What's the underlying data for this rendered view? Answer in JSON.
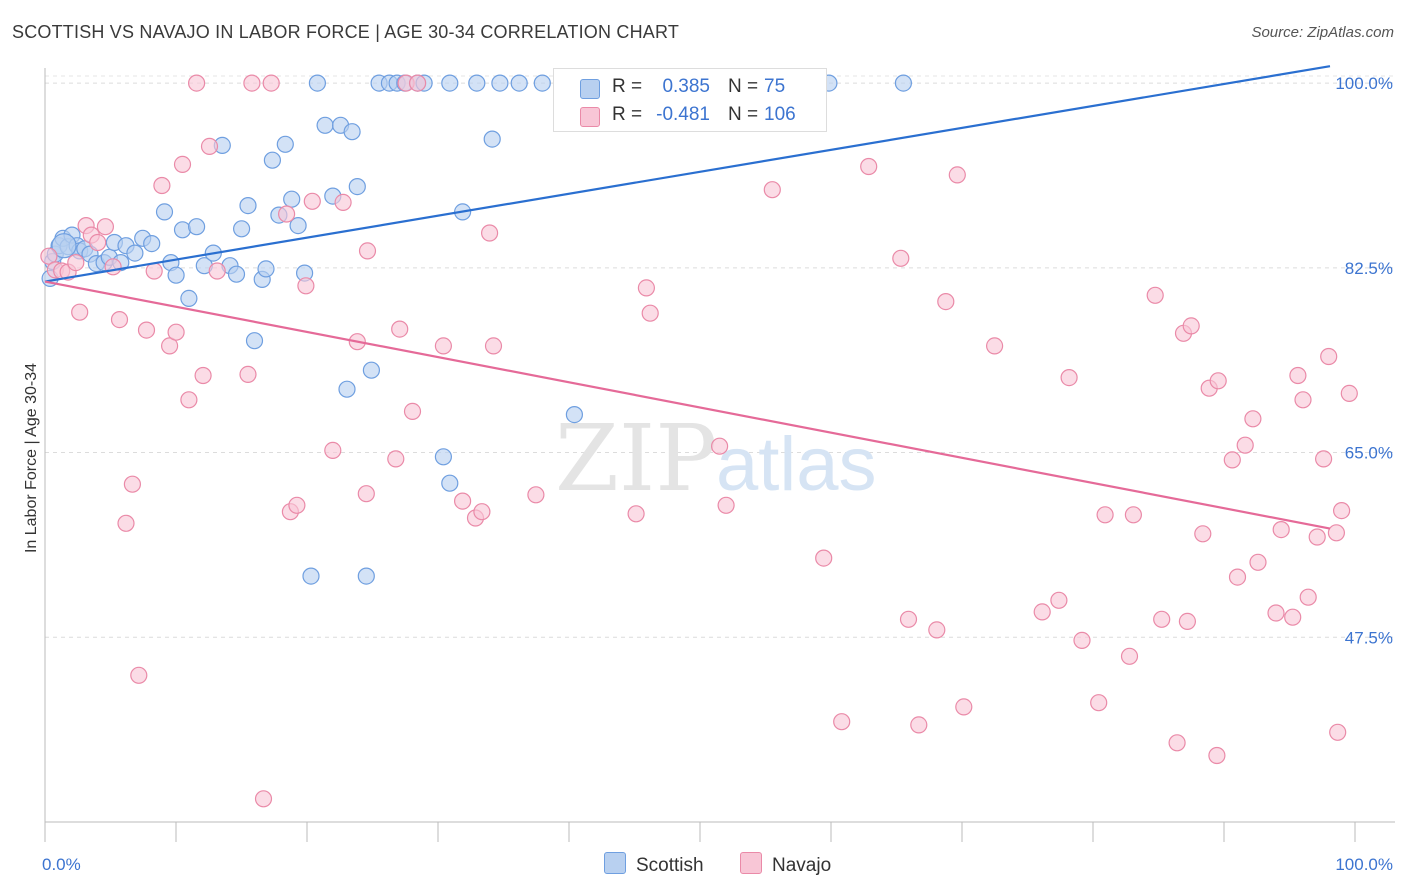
{
  "title": "SCOTTISH VS NAVAJO IN LABOR FORCE | AGE 30-34 CORRELATION CHART",
  "source": "Source: ZipAtlas.com",
  "watermark": {
    "zip": "ZIP",
    "atlas": "atlas"
  },
  "colors": {
    "scottish_fill": "#b8d0f0",
    "scottish_stroke": "#6f9fe0",
    "scottish_line": "#2a6fd0",
    "navajo_fill": "#f8c6d6",
    "navajo_stroke": "#ea8aa8",
    "navajo_line": "#e56a98",
    "tick_text": "#3c74d0"
  },
  "legend": {
    "rows": [
      {
        "r_label": "R =",
        "r_value": "0.385",
        "n_label": "N =",
        "n_value": "75"
      },
      {
        "r_label": "R =",
        "r_value": "-0.481",
        "n_label": "N =",
        "n_value": "106"
      }
    ]
  },
  "bottom_legend": [
    "Scottish",
    "Navajo"
  ],
  "chart_data": {
    "type": "scatter",
    "ylabel": "In Labor Force | Age 30-34",
    "xlim": [
      0,
      100
    ],
    "ylim": [
      30,
      102
    ],
    "y_ticks": [
      {
        "value": 100,
        "label": "100.0%"
      },
      {
        "value": 82.5,
        "label": "82.5%"
      },
      {
        "value": 65,
        "label": "65.0%"
      },
      {
        "value": 47.5,
        "label": "47.5%"
      }
    ],
    "x_tick_labels": [
      {
        "value": 0,
        "label": "0.0%"
      },
      {
        "value": 100,
        "label": "100.0%"
      }
    ],
    "x_minor_ticks": [
      0,
      10,
      20,
      30,
      40,
      50,
      60,
      70,
      80,
      90,
      100
    ],
    "grid": true,
    "series": [
      {
        "name": "Scottish",
        "r": 0.385,
        "n": 75,
        "trend": {
          "x0": 0,
          "y0": 81.2,
          "x1": 100,
          "y1": 101.6
        },
        "points": [
          [
            0.4,
            81.5
          ],
          [
            0.6,
            83.1
          ],
          [
            0.8,
            83.8
          ],
          [
            1.1,
            84.6
          ],
          [
            1.4,
            85.3
          ],
          [
            1.8,
            84.5
          ],
          [
            2.1,
            85.6
          ],
          [
            2.5,
            84.6
          ],
          [
            2.7,
            84.1
          ],
          [
            3.1,
            84.3
          ],
          [
            3.5,
            83.8
          ],
          [
            4.0,
            82.9
          ],
          [
            4.6,
            83.0
          ],
          [
            5.0,
            83.5
          ],
          [
            5.4,
            84.9
          ],
          [
            5.9,
            83.0
          ],
          [
            6.3,
            84.6
          ],
          [
            7.0,
            83.9
          ],
          [
            7.6,
            85.3
          ],
          [
            8.3,
            84.8
          ],
          [
            9.3,
            87.8
          ],
          [
            9.8,
            83.0
          ],
          [
            10.2,
            81.8
          ],
          [
            10.7,
            86.1
          ],
          [
            11.2,
            79.6
          ],
          [
            11.8,
            86.4
          ],
          [
            12.4,
            82.7
          ],
          [
            13.1,
            83.9
          ],
          [
            13.8,
            94.1
          ],
          [
            14.4,
            82.7
          ],
          [
            14.9,
            81.9
          ],
          [
            15.3,
            86.2
          ],
          [
            15.8,
            88.4
          ],
          [
            16.3,
            75.6
          ],
          [
            16.9,
            81.4
          ],
          [
            17.2,
            82.4
          ],
          [
            17.7,
            92.7
          ],
          [
            18.2,
            87.5
          ],
          [
            18.7,
            94.2
          ],
          [
            19.2,
            89.0
          ],
          [
            19.7,
            86.5
          ],
          [
            20.2,
            82.0
          ],
          [
            20.7,
            53.3
          ],
          [
            21.2,
            100.0
          ],
          [
            21.8,
            96.0
          ],
          [
            22.4,
            89.3
          ],
          [
            23.0,
            96.0
          ],
          [
            23.5,
            71.0
          ],
          [
            23.9,
            95.4
          ],
          [
            24.3,
            90.2
          ],
          [
            25.0,
            53.3
          ],
          [
            25.4,
            72.8
          ],
          [
            26.0,
            100.0
          ],
          [
            26.8,
            100.0
          ],
          [
            27.4,
            100.0
          ],
          [
            28.0,
            100.0
          ],
          [
            29.0,
            100.0
          ],
          [
            29.5,
            100.0
          ],
          [
            31.5,
            100.0
          ],
          [
            33.6,
            100.0
          ],
          [
            31.0,
            64.6
          ],
          [
            31.5,
            62.1
          ],
          [
            32.5,
            87.8
          ],
          [
            34.8,
            94.7
          ],
          [
            35.4,
            100.0
          ],
          [
            36.9,
            100.0
          ],
          [
            38.7,
            100.0
          ],
          [
            40.3,
            100.0
          ],
          [
            41.7,
            100.0
          ],
          [
            42.7,
            100.0
          ],
          [
            41.2,
            68.6
          ],
          [
            50.5,
            100.0
          ],
          [
            54.2,
            100.0
          ],
          [
            61.0,
            100.0
          ],
          [
            66.8,
            100.0
          ]
        ]
      },
      {
        "name": "Navajo",
        "r": -0.481,
        "n": 106,
        "trend": {
          "x0": 0,
          "y0": 81.2,
          "x1": 100,
          "y1": 57.8
        },
        "points": [
          [
            0.3,
            83.6
          ],
          [
            0.8,
            82.3
          ],
          [
            1.3,
            82.2
          ],
          [
            1.8,
            82.1
          ],
          [
            2.4,
            83.0
          ],
          [
            2.7,
            78.3
          ],
          [
            3.2,
            86.5
          ],
          [
            3.6,
            85.6
          ],
          [
            4.1,
            84.9
          ],
          [
            4.7,
            86.4
          ],
          [
            5.3,
            82.6
          ],
          [
            5.8,
            77.6
          ],
          [
            6.3,
            58.3
          ],
          [
            6.8,
            62.0
          ],
          [
            7.3,
            43.9
          ],
          [
            7.9,
            76.6
          ],
          [
            8.5,
            82.2
          ],
          [
            9.1,
            90.3
          ],
          [
            9.7,
            75.1
          ],
          [
            10.2,
            76.4
          ],
          [
            10.7,
            92.3
          ],
          [
            11.2,
            70.0
          ],
          [
            11.8,
            100.0
          ],
          [
            12.3,
            72.3
          ],
          [
            12.8,
            94.0
          ],
          [
            13.4,
            82.2
          ],
          [
            15.8,
            72.4
          ],
          [
            16.1,
            100.0
          ],
          [
            17.0,
            32.2
          ],
          [
            17.6,
            100.0
          ],
          [
            18.8,
            87.6
          ],
          [
            19.1,
            59.4
          ],
          [
            19.6,
            60.0
          ],
          [
            20.3,
            80.8
          ],
          [
            20.8,
            88.8
          ],
          [
            22.4,
            65.2
          ],
          [
            23.2,
            88.7
          ],
          [
            24.3,
            75.5
          ],
          [
            25.0,
            61.1
          ],
          [
            25.1,
            84.1
          ],
          [
            27.3,
            64.4
          ],
          [
            27.6,
            76.7
          ],
          [
            28.1,
            100.0
          ],
          [
            28.6,
            68.9
          ],
          [
            29.0,
            100.0
          ],
          [
            31.0,
            75.1
          ],
          [
            32.5,
            60.4
          ],
          [
            33.5,
            58.8
          ],
          [
            34.0,
            59.4
          ],
          [
            34.6,
            85.8
          ],
          [
            34.9,
            75.1
          ],
          [
            38.2,
            61.0
          ],
          [
            42.4,
            100.0
          ],
          [
            46.0,
            59.2
          ],
          [
            46.8,
            80.6
          ],
          [
            47.1,
            78.2
          ],
          [
            52.5,
            65.6
          ],
          [
            53.0,
            60.0
          ],
          [
            56.6,
            89.9
          ],
          [
            60.6,
            55.0
          ],
          [
            62.0,
            39.5
          ],
          [
            64.1,
            92.1
          ],
          [
            66.6,
            83.4
          ],
          [
            67.2,
            49.2
          ],
          [
            68.0,
            39.2
          ],
          [
            69.4,
            48.2
          ],
          [
            70.1,
            79.3
          ],
          [
            71.0,
            91.3
          ],
          [
            71.5,
            40.9
          ],
          [
            73.9,
            75.1
          ],
          [
            77.6,
            49.9
          ],
          [
            78.9,
            51.0
          ],
          [
            79.7,
            72.1
          ],
          [
            80.7,
            47.2
          ],
          [
            82.0,
            41.3
          ],
          [
            82.5,
            59.1
          ],
          [
            84.4,
            45.7
          ],
          [
            84.7,
            59.1
          ],
          [
            86.4,
            79.9
          ],
          [
            86.9,
            49.2
          ],
          [
            88.1,
            37.5
          ],
          [
            88.6,
            76.3
          ],
          [
            88.9,
            49.0
          ],
          [
            89.2,
            77.0
          ],
          [
            90.1,
            57.3
          ],
          [
            90.6,
            71.1
          ],
          [
            91.2,
            36.3
          ],
          [
            91.3,
            71.8
          ],
          [
            92.4,
            64.3
          ],
          [
            92.8,
            53.2
          ],
          [
            93.4,
            65.7
          ],
          [
            94.0,
            68.2
          ],
          [
            94.4,
            54.6
          ],
          [
            95.8,
            49.8
          ],
          [
            96.2,
            57.7
          ],
          [
            97.1,
            49.4
          ],
          [
            97.5,
            72.3
          ],
          [
            97.9,
            70.0
          ],
          [
            98.3,
            51.3
          ],
          [
            99.0,
            57.0
          ],
          [
            99.5,
            64.4
          ],
          [
            99.9,
            74.1
          ],
          [
            100.5,
            57.4
          ],
          [
            100.9,
            59.5
          ],
          [
            101.5,
            70.6
          ],
          [
            100.6,
            38.5
          ]
        ]
      }
    ]
  }
}
